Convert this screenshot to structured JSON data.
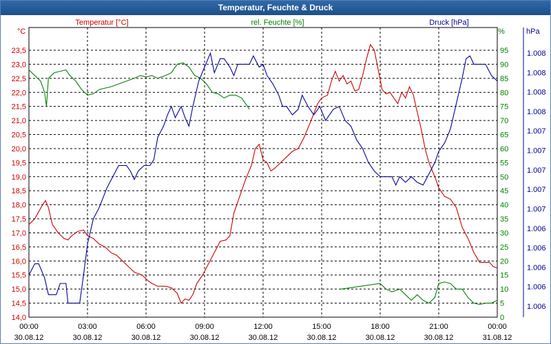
{
  "title": "Temperatur, Feuchte & Druck",
  "colors": {
    "temperature": "#cc0000",
    "humidity": "#008000",
    "pressure": "#000099",
    "grid": "#000000",
    "title_bg": "#1f5592"
  },
  "chart_data": {
    "type": "line",
    "title": "Temperatur, Feuchte & Druck",
    "x_ticks": [
      {
        "time": "00:00",
        "date": "30.08.12"
      },
      {
        "time": "03:00",
        "date": "30.08.12"
      },
      {
        "time": "06:00",
        "date": "30.08.12"
      },
      {
        "time": "09:00",
        "date": "30.08.12"
      },
      {
        "time": "12:00",
        "date": "30.08.12"
      },
      {
        "time": "15:00",
        "date": "30.08.12"
      },
      {
        "time": "18:00",
        "date": "30.08.12"
      },
      {
        "time": "21:00",
        "date": "30.08.12"
      },
      {
        "time": "00:00",
        "date": "31.08.12"
      }
    ],
    "x_range_hours": [
      0,
      24
    ],
    "left_axis": {
      "unit": "°C",
      "label": "Temperatur [°C]",
      "range": [
        14.0,
        23.5
      ],
      "ticks": [
        "23,5",
        "23,0",
        "22,5",
        "22,0",
        "21,5",
        "21,0",
        "20,5",
        "20,0",
        "19,5",
        "19,0",
        "18,5",
        "18,0",
        "17,5",
        "17,0",
        "16,5",
        "16,0",
        "15,5",
        "15,0",
        "14,5",
        "14,0"
      ]
    },
    "middle_axis": {
      "unit": "%",
      "label": "rel. Feuchte [%]",
      "range": [
        0,
        95
      ],
      "ticks": [
        "95",
        "90",
        "85",
        "80",
        "75",
        "70",
        "65",
        "60",
        "55",
        "50",
        "45",
        "40",
        "35",
        "30",
        "25",
        "20",
        "15",
        "10",
        "5",
        "0"
      ]
    },
    "right_axis": {
      "unit": "hPa",
      "label": "Druck [hPa]",
      "ticks": [
        "1.008",
        "1.008",
        "1.008",
        "1.008",
        "1.007",
        "1.007",
        "1.007",
        "1.007",
        "1.007",
        "1.006",
        "1.006",
        "1.006",
        "1.006",
        "1.006"
      ]
    },
    "series": [
      {
        "name": "Temperatur [°C]",
        "axis": "left",
        "color": "#cc0000",
        "points": [
          [
            0,
            17.3
          ],
          [
            0.3,
            17.5
          ],
          [
            0.7,
            18.0
          ],
          [
            0.85,
            18.15
          ],
          [
            1.0,
            17.9
          ],
          [
            1.2,
            17.3
          ],
          [
            1.5,
            17.0
          ],
          [
            1.8,
            16.8
          ],
          [
            2.0,
            16.75
          ],
          [
            2.2,
            16.9
          ],
          [
            2.5,
            17.05
          ],
          [
            2.8,
            17.1
          ],
          [
            3.0,
            16.9
          ],
          [
            3.3,
            16.8
          ],
          [
            3.6,
            16.6
          ],
          [
            3.9,
            16.5
          ],
          [
            4.2,
            16.3
          ],
          [
            4.5,
            16.2
          ],
          [
            4.8,
            16.0
          ],
          [
            5.1,
            15.8
          ],
          [
            5.4,
            15.6
          ],
          [
            5.8,
            15.5
          ],
          [
            6.1,
            15.3
          ],
          [
            6.3,
            15.2
          ],
          [
            6.6,
            15.1
          ],
          [
            7.0,
            15.1
          ],
          [
            7.3,
            15.05
          ],
          [
            7.6,
            14.85
          ],
          [
            7.8,
            14.5
          ],
          [
            8.0,
            14.65
          ],
          [
            8.2,
            14.6
          ],
          [
            8.4,
            14.8
          ],
          [
            8.6,
            15.2
          ],
          [
            8.9,
            15.5
          ],
          [
            9.2,
            15.9
          ],
          [
            9.5,
            16.3
          ],
          [
            9.8,
            16.7
          ],
          [
            10.1,
            16.75
          ],
          [
            10.3,
            16.9
          ],
          [
            10.5,
            17.7
          ],
          [
            10.8,
            18.3
          ],
          [
            11.1,
            18.9
          ],
          [
            11.4,
            19.4
          ],
          [
            11.6,
            20.0
          ],
          [
            11.8,
            20.15
          ],
          [
            12.0,
            19.6
          ],
          [
            12.2,
            19.5
          ],
          [
            12.4,
            19.2
          ],
          [
            12.6,
            19.3
          ],
          [
            12.9,
            19.5
          ],
          [
            13.2,
            19.7
          ],
          [
            13.5,
            19.9
          ],
          [
            13.8,
            20.0
          ],
          [
            14.1,
            20.4
          ],
          [
            14.4,
            20.9
          ],
          [
            14.8,
            21.6
          ],
          [
            15.0,
            21.8
          ],
          [
            15.3,
            21.9
          ],
          [
            15.5,
            22.4
          ],
          [
            15.7,
            22.75
          ],
          [
            15.9,
            22.4
          ],
          [
            16.1,
            22.6
          ],
          [
            16.3,
            22.3
          ],
          [
            16.5,
            22.4
          ],
          [
            16.7,
            22.05
          ],
          [
            16.9,
            22.1
          ],
          [
            17.1,
            22.6
          ],
          [
            17.3,
            23.2
          ],
          [
            17.5,
            23.7
          ],
          [
            17.7,
            23.5
          ],
          [
            17.9,
            22.8
          ],
          [
            18.1,
            22.1
          ],
          [
            18.3,
            21.95
          ],
          [
            18.5,
            22.0
          ],
          [
            18.7,
            21.8
          ],
          [
            18.9,
            21.6
          ],
          [
            19.1,
            22.0
          ],
          [
            19.3,
            21.8
          ],
          [
            19.5,
            22.2
          ],
          [
            19.7,
            21.9
          ],
          [
            19.9,
            21.3
          ],
          [
            20.1,
            20.7
          ],
          [
            20.3,
            20.0
          ],
          [
            20.5,
            19.5
          ],
          [
            20.8,
            19.0
          ],
          [
            21.0,
            18.6
          ],
          [
            21.3,
            18.3
          ],
          [
            21.6,
            18.2
          ],
          [
            21.9,
            17.9
          ],
          [
            22.2,
            17.2
          ],
          [
            22.5,
            16.8
          ],
          [
            22.8,
            16.3
          ],
          [
            23.1,
            15.95
          ],
          [
            23.4,
            15.95
          ],
          [
            23.6,
            15.95
          ],
          [
            23.8,
            15.8
          ],
          [
            24.0,
            15.75
          ]
        ]
      },
      {
        "name": "rel. Feuchte [%]",
        "axis": "middle",
        "color": "#008000",
        "points": [
          [
            0,
            88
          ],
          [
            0.3,
            86
          ],
          [
            0.6,
            84
          ],
          [
            0.8,
            80
          ],
          [
            0.9,
            75
          ],
          [
            1.0,
            85
          ],
          [
            1.3,
            87
          ],
          [
            1.6,
            87.5
          ],
          [
            1.9,
            88
          ],
          [
            2.1,
            86
          ],
          [
            2.4,
            84
          ],
          [
            2.7,
            81
          ],
          [
            3.0,
            79
          ],
          [
            3.3,
            79.5
          ],
          [
            3.6,
            81
          ],
          [
            3.9,
            81.5
          ],
          [
            4.2,
            82
          ],
          [
            4.6,
            83
          ],
          [
            5.0,
            84
          ],
          [
            5.4,
            85
          ],
          [
            5.7,
            86
          ],
          [
            6.0,
            85.5
          ],
          [
            6.3,
            86
          ],
          [
            6.6,
            85
          ],
          [
            7.0,
            86
          ],
          [
            7.3,
            87
          ],
          [
            7.6,
            90
          ],
          [
            7.9,
            90.5
          ],
          [
            8.2,
            89
          ],
          [
            8.5,
            86
          ],
          [
            8.8,
            85
          ],
          [
            9.1,
            83
          ],
          [
            9.4,
            80
          ],
          [
            9.7,
            79.5
          ],
          [
            10.0,
            78
          ],
          [
            10.3,
            79
          ],
          [
            10.6,
            79
          ],
          [
            10.9,
            78
          ],
          [
            11.1,
            76
          ],
          [
            11.3,
            74
          ]
        ],
        "points_late": [
          [
            15.9,
            10
          ],
          [
            16.0,
            10
          ],
          [
            18.0,
            12
          ],
          [
            18.3,
            10
          ],
          [
            18.6,
            9
          ],
          [
            19.0,
            10
          ],
          [
            19.3,
            8
          ],
          [
            19.6,
            6
          ],
          [
            19.9,
            8
          ],
          [
            20.2,
            6
          ],
          [
            20.5,
            5
          ],
          [
            20.8,
            7
          ],
          [
            21.0,
            12
          ],
          [
            21.3,
            12.5
          ],
          [
            21.6,
            12
          ],
          [
            21.9,
            10
          ],
          [
            22.2,
            10
          ],
          [
            22.5,
            7
          ],
          [
            22.8,
            5
          ],
          [
            23.1,
            4.5
          ],
          [
            23.4,
            5
          ],
          [
            23.7,
            5
          ],
          [
            24.0,
            6
          ]
        ]
      },
      {
        "name": "Druck [hPa]",
        "axis": "right",
        "color": "#000099",
        "points": [
          [
            0,
            15.5
          ],
          [
            0.3,
            15.9
          ],
          [
            0.5,
            15.9
          ],
          [
            0.8,
            15.4
          ],
          [
            1.0,
            14.8
          ],
          [
            1.4,
            14.8
          ],
          [
            1.6,
            15.2
          ],
          [
            1.9,
            15.2
          ],
          [
            2.0,
            14.5
          ],
          [
            2.6,
            14.5
          ],
          [
            2.8,
            15.5
          ],
          [
            3.0,
            16.6
          ],
          [
            3.3,
            17.5
          ],
          [
            3.6,
            17.9
          ],
          [
            4.0,
            18.6
          ],
          [
            4.3,
            19.0
          ],
          [
            4.6,
            19.4
          ],
          [
            5.0,
            19.4
          ],
          [
            5.2,
            19.2
          ],
          [
            5.4,
            18.9
          ],
          [
            5.6,
            19.2
          ],
          [
            5.9,
            19.4
          ],
          [
            6.2,
            19.4
          ],
          [
            6.4,
            19.6
          ],
          [
            6.6,
            20.4
          ],
          [
            6.9,
            20.8
          ],
          [
            7.1,
            21.2
          ],
          [
            7.3,
            21.5
          ],
          [
            7.5,
            21.1
          ],
          [
            7.8,
            21.5
          ],
          [
            8.0,
            21.1
          ],
          [
            8.2,
            20.8
          ],
          [
            8.4,
            21.5
          ],
          [
            8.7,
            22.4
          ],
          [
            9.0,
            22.9
          ],
          [
            9.3,
            23.4
          ],
          [
            9.5,
            22.7
          ],
          [
            9.8,
            23.2
          ],
          [
            10.0,
            23.2
          ],
          [
            10.3,
            22.9
          ],
          [
            10.5,
            22.6
          ],
          [
            10.7,
            23.0
          ],
          [
            11.0,
            23.0
          ],
          [
            11.3,
            23.0
          ],
          [
            11.5,
            23.3
          ],
          [
            11.8,
            22.9
          ],
          [
            12.0,
            23.0
          ],
          [
            12.2,
            22.6
          ],
          [
            12.5,
            22.3
          ],
          [
            12.8,
            21.9
          ],
          [
            13.0,
            21.5
          ],
          [
            13.2,
            21.5
          ],
          [
            13.5,
            21.2
          ],
          [
            13.8,
            21.4
          ],
          [
            14.0,
            21.9
          ],
          [
            14.3,
            21.5
          ],
          [
            14.6,
            21.2
          ],
          [
            14.9,
            21.5
          ],
          [
            15.2,
            21.0
          ],
          [
            15.6,
            21.4
          ],
          [
            15.9,
            21.5
          ],
          [
            16.2,
            21.0
          ],
          [
            16.5,
            20.8
          ],
          [
            16.8,
            20.3
          ],
          [
            17.1,
            20.0
          ],
          [
            17.4,
            19.5
          ],
          [
            17.7,
            19.2
          ],
          [
            18.0,
            19.0
          ],
          [
            18.3,
            19.0
          ],
          [
            18.6,
            19.0
          ],
          [
            18.8,
            18.7
          ],
          [
            19.0,
            19.0
          ],
          [
            19.3,
            18.8
          ],
          [
            19.6,
            19.0
          ],
          [
            19.9,
            18.8
          ],
          [
            20.2,
            18.7
          ],
          [
            20.5,
            19.1
          ],
          [
            20.8,
            19.5
          ],
          [
            21.0,
            19.9
          ],
          [
            21.3,
            20.2
          ],
          [
            21.6,
            20.7
          ],
          [
            21.9,
            21.6
          ],
          [
            22.2,
            22.5
          ],
          [
            22.4,
            23.2
          ],
          [
            22.6,
            23.3
          ],
          [
            22.8,
            23.0
          ],
          [
            23.1,
            23.0
          ],
          [
            23.4,
            23.0
          ],
          [
            23.7,
            22.6
          ],
          [
            24.0,
            22.4
          ]
        ]
      }
    ]
  }
}
